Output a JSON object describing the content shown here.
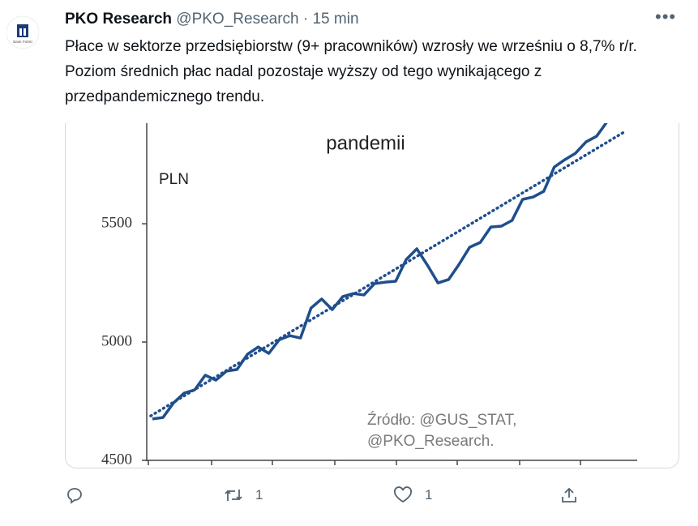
{
  "tweet": {
    "name": "PKO Research",
    "handle": "@PKO_Research",
    "time": "· 15 min",
    "avatar_text": "Bank Polski",
    "text": "Płace w sektorze przedsiębiorstw (9+ pracowników) wzrosły we wrześniu o 8,7% r/r. Poziom średnich płac nadal pozostaje wyższy od tego wynikającego z przedpandemicznego trendu.",
    "retweets": 1,
    "likes": 1
  },
  "chart_data": {
    "type": "line",
    "title": "pandemii",
    "unit_label": "PLN",
    "source": [
      "Źródło: @GUS_STAT,",
      "@PKO_Research."
    ],
    "categories": [
      null,
      null,
      null,
      null,
      null,
      null,
      null,
      null,
      null,
      null,
      null,
      null,
      null,
      null,
      null,
      null,
      null,
      null,
      null,
      null,
      null,
      null,
      null,
      null,
      null,
      null,
      null,
      null,
      null,
      null,
      null,
      null,
      null,
      null,
      null,
      null,
      null,
      null,
      null,
      null,
      null,
      null,
      null,
      null
    ],
    "series": [
      {
        "color": "#1f4e8c",
        "values": [
          4675,
          4681,
          4743,
          4784,
          4798,
          4860,
          4839,
          4877,
          4884,
          4949,
          4979,
          4952,
          5010,
          5027,
          5017,
          5144,
          5182,
          5137,
          5192,
          5205,
          5199,
          5247,
          5253,
          5257,
          5349,
          5394,
          5325,
          5250,
          5264,
          5329,
          5401,
          5421,
          5486,
          5490,
          5514,
          5603,
          5613,
          5637,
          5740,
          5771,
          5798,
          5846,
          5870,
          5932
        ]
      }
    ],
    "trend": {
      "start": 4688,
      "end": 5890,
      "color": "#1f4e8c"
    },
    "ylim": [
      4500,
      5925
    ],
    "yticks": [
      4500,
      5000,
      5500
    ]
  }
}
